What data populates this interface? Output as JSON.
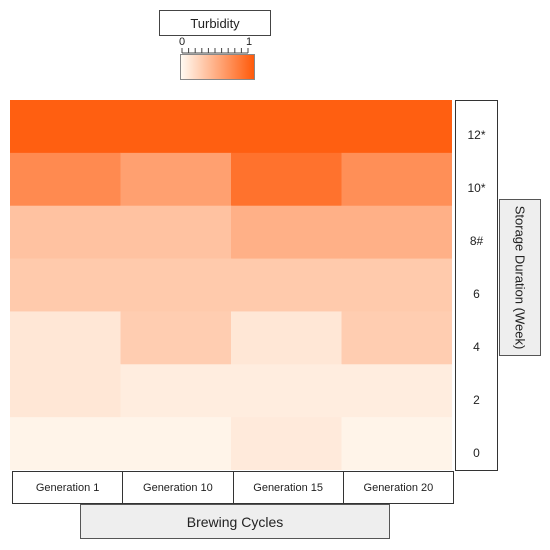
{
  "chart_data": {
    "type": "heatmap",
    "legend": {
      "title": "Turbidity",
      "min_label": "0",
      "max_label": "1",
      "colors": [
        "#fffaf2",
        "#ff5a0a"
      ]
    },
    "x_categories": [
      "Generation 1",
      "Generation 10",
      "Generation 15",
      "Generation 20"
    ],
    "xlabel": "Brewing Cycles",
    "y_categories": [
      "12*",
      "10*",
      "8#",
      "6",
      "4",
      "2",
      "0"
    ],
    "ylabel": "Storage Duration (Week)",
    "values": [
      [
        0.97,
        0.97,
        0.97,
        0.97
      ],
      [
        0.7,
        0.56,
        0.85,
        0.67
      ],
      [
        0.35,
        0.35,
        0.46,
        0.46
      ],
      [
        0.3,
        0.3,
        0.3,
        0.3
      ],
      [
        0.12,
        0.28,
        0.12,
        0.28
      ],
      [
        0.12,
        0.08,
        0.08,
        0.08
      ],
      [
        0.04,
        0.04,
        0.1,
        0.04
      ]
    ]
  }
}
